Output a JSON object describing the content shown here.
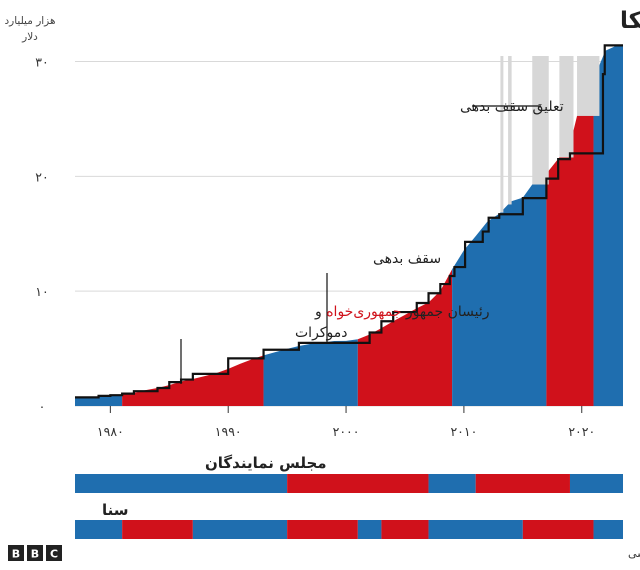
{
  "chart_data": {
    "type": "area",
    "title": "افزایش بدهی در دولت‌های مختلف آمریکا",
    "ylabel": "هزار میلیارد دلار",
    "xlim": [
      1977,
      2023.5
    ],
    "ylim": [
      0,
      31
    ],
    "y_ticks": [
      {
        "value": 0,
        "label": "۰"
      },
      {
        "value": 10,
        "label": "۱۰"
      },
      {
        "value": 20,
        "label": "۲۰"
      },
      {
        "value": 30,
        "label": "۳۰"
      }
    ],
    "x_ticks": [
      {
        "value": 1980,
        "label": "۱۹۸۰"
      },
      {
        "value": 1990,
        "label": "۱۹۹۰"
      },
      {
        "value": 2000,
        "label": "۲۰۰۰"
      },
      {
        "value": 2010,
        "label": "۲۰۱۰"
      },
      {
        "value": 2020,
        "label": "۲۰۲۰"
      }
    ],
    "grid": true,
    "colors": {
      "republican": "#d0111b",
      "democrat": "#1f6eaf",
      "ceiling": "#111111",
      "suspension": "#d7d7d7"
    },
    "debt": [
      {
        "x": 1977,
        "y": 0.7
      },
      {
        "x": 1978,
        "y": 0.77
      },
      {
        "x": 1979,
        "y": 0.83
      },
      {
        "x": 1980,
        "y": 0.91
      },
      {
        "x": 1981,
        "y": 1.0
      },
      {
        "x": 1982,
        "y": 1.14
      },
      {
        "x": 1983,
        "y": 1.38
      },
      {
        "x": 1984,
        "y": 1.57
      },
      {
        "x": 1985,
        "y": 1.82
      },
      {
        "x": 1986,
        "y": 2.13
      },
      {
        "x": 1987,
        "y": 2.35
      },
      {
        "x": 1988,
        "y": 2.6
      },
      {
        "x": 1989,
        "y": 2.86
      },
      {
        "x": 1990,
        "y": 3.23
      },
      {
        "x": 1991,
        "y": 3.67
      },
      {
        "x": 1992,
        "y": 4.06
      },
      {
        "x": 1993,
        "y": 4.41
      },
      {
        "x": 1994,
        "y": 4.69
      },
      {
        "x": 1995,
        "y": 4.97
      },
      {
        "x": 1996,
        "y": 5.22
      },
      {
        "x": 1997,
        "y": 5.41
      },
      {
        "x": 1998,
        "y": 5.53
      },
      {
        "x": 1999,
        "y": 5.66
      },
      {
        "x": 2000,
        "y": 5.67
      },
      {
        "x": 2001,
        "y": 5.81
      },
      {
        "x": 2002,
        "y": 6.23
      },
      {
        "x": 2003,
        "y": 6.78
      },
      {
        "x": 2004,
        "y": 7.38
      },
      {
        "x": 2005,
        "y": 7.93
      },
      {
        "x": 2006,
        "y": 8.51
      },
      {
        "x": 2007,
        "y": 9.01
      },
      {
        "x": 2008,
        "y": 10.02
      },
      {
        "x": 2009,
        "y": 11.91
      },
      {
        "x": 2010,
        "y": 13.56
      },
      {
        "x": 2011,
        "y": 14.79
      },
      {
        "x": 2012,
        "y": 16.07
      },
      {
        "x": 2013,
        "y": 16.74
      },
      {
        "x": 2014,
        "y": 17.82
      },
      {
        "x": 2015,
        "y": 18.15
      },
      {
        "x": 2016,
        "y": 19.57
      },
      {
        "x": 2017,
        "y": 20.24
      },
      {
        "x": 2018,
        "y": 21.52
      },
      {
        "x": 2019,
        "y": 22.72
      },
      {
        "x": 2020,
        "y": 26.95
      },
      {
        "x": 2021,
        "y": 28.43
      },
      {
        "x": 2022,
        "y": 30.93
      },
      {
        "x": 2023,
        "y": 31.4
      }
    ],
    "ceiling": [
      {
        "x": 1977,
        "y": 0.75
      },
      {
        "x": 1979,
        "y": 0.88
      },
      {
        "x": 1980,
        "y": 0.94
      },
      {
        "x": 1981,
        "y": 1.08
      },
      {
        "x": 1982,
        "y": 1.29
      },
      {
        "x": 1984,
        "y": 1.57
      },
      {
        "x": 1985,
        "y": 2.08
      },
      {
        "x": 1986,
        "y": 2.3
      },
      {
        "x": 1987,
        "y": 2.8
      },
      {
        "x": 1990,
        "y": 4.15
      },
      {
        "x": 1993,
        "y": 4.9
      },
      {
        "x": 1996,
        "y": 5.5
      },
      {
        "x": 2002,
        "y": 6.4
      },
      {
        "x": 2003,
        "y": 7.38
      },
      {
        "x": 2004,
        "y": 8.18
      },
      {
        "x": 2006,
        "y": 8.97
      },
      {
        "x": 2007,
        "y": 9.82
      },
      {
        "x": 2008,
        "y": 10.62
      },
      {
        "x": 2008.8,
        "y": 11.32
      },
      {
        "x": 2009.2,
        "y": 12.1
      },
      {
        "x": 2010.1,
        "y": 14.29
      },
      {
        "x": 2011.6,
        "y": 15.19
      },
      {
        "x": 2012.1,
        "y": 16.39
      },
      {
        "x": 2013,
        "y": 16.7
      },
      {
        "x": 2015,
        "y": 18.1
      },
      {
        "x": 2017,
        "y": 19.8
      },
      {
        "x": 2018,
        "y": 21.5
      },
      {
        "x": 2019,
        "y": 22.0
      },
      {
        "x": 2021.8,
        "y": 28.9
      },
      {
        "x": 2021.95,
        "y": 31.4
      },
      {
        "x": 2023.5,
        "y": 31.4
      }
    ],
    "presidencies": [
      {
        "party": "democrat",
        "start": 1977,
        "end": 1981
      },
      {
        "party": "republican",
        "start": 1981,
        "end": 1993
      },
      {
        "party": "democrat",
        "start": 1993,
        "end": 2001
      },
      {
        "party": "republican",
        "start": 2001,
        "end": 2009
      },
      {
        "party": "democrat",
        "start": 2009,
        "end": 2017
      },
      {
        "party": "republican",
        "start": 2017,
        "end": 2021
      },
      {
        "party": "democrat",
        "start": 2021,
        "end": 2023.5
      }
    ],
    "suspensions": [
      {
        "start": 2013.1,
        "end": 2013.35
      },
      {
        "start": 2013.75,
        "end": 2014.05
      },
      {
        "start": 2015.8,
        "end": 2017.2
      },
      {
        "start": 2018.1,
        "end": 2019.3
      },
      {
        "start": 2019.6,
        "end": 2021.5
      }
    ],
    "annotations": {
      "suspension": "تعلیق سقف بدهی",
      "ceiling": "سقف بدهی",
      "presidents_line1_a": "رئیسان جمهور ",
      "presidents_line1_b": "جمهوری‌خواه",
      "presidents_line1_c": " و",
      "presidents_line2": "دموکرات"
    }
  },
  "congress": {
    "house": {
      "title": "مجلس نمایندگان",
      "segments": [
        {
          "party": "democrat",
          "start": 1977,
          "end": 1995
        },
        {
          "party": "republican",
          "start": 1995,
          "end": 2007
        },
        {
          "party": "democrat",
          "start": 2007,
          "end": 2011
        },
        {
          "party": "republican",
          "start": 2011,
          "end": 2019
        },
        {
          "party": "democrat",
          "start": 2019,
          "end": 2023.5
        }
      ]
    },
    "senate": {
      "title": "سنا",
      "segments": [
        {
          "party": "democrat",
          "start": 1977,
          "end": 1981
        },
        {
          "party": "republican",
          "start": 1981,
          "end": 1987
        },
        {
          "party": "democrat",
          "start": 1987,
          "end": 1995
        },
        {
          "party": "republican",
          "start": 1995,
          "end": 2001
        },
        {
          "party": "democrat",
          "start": 2001,
          "end": 2003
        },
        {
          "party": "republican",
          "start": 2003,
          "end": 2007
        },
        {
          "party": "democrat",
          "start": 2007,
          "end": 2015
        },
        {
          "party": "republican",
          "start": 2015,
          "end": 2021
        },
        {
          "party": "democrat",
          "start": 2021,
          "end": 2023.5
        }
      ]
    }
  },
  "footer": {
    "logo_letters": [
      "B",
      "B",
      "C"
    ],
    "source": "منبع: آرشیو ملی، داده‌های اقتصادی بانک مرکزی آمریکا، تحقیق بی‌بی‌سی"
  }
}
